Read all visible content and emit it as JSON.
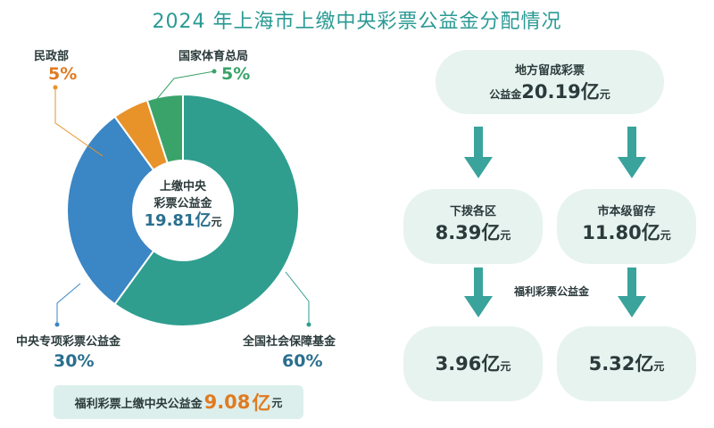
{
  "title": "2024 年上海市上缴中央彩票公益金分配情况",
  "chart_data": {
    "type": "pie",
    "title": "2024 年上海市上缴中央彩票公益金分配情况",
    "center_caption_line1": "上缴中央",
    "center_caption_line2": "彩票公益金",
    "center_amount": "19.81",
    "center_amount_unit_big": "亿",
    "center_amount_unit_small": "元",
    "slices": [
      {
        "name": "全国社会保障基金",
        "value": 60,
        "label": "60%",
        "color": "#2f9e8f"
      },
      {
        "name": "中央专项彩票公益金",
        "value": 30,
        "label": "30%",
        "color": "#3b86c4"
      },
      {
        "name": "民政部",
        "value": 5,
        "label": "5%",
        "color": "#e8922a"
      },
      {
        "name": "国家体育总局",
        "value": 5,
        "label": "5%",
        "color": "#3aa36a"
      }
    ]
  },
  "bottom_banner": {
    "text": "福利彩票上缴中央公益金",
    "amount": "9.08",
    "unit_big": "亿",
    "unit_small": "元"
  },
  "flow": {
    "top": {
      "caption": "地方留成彩票",
      "prefix": "公益金",
      "amount": "20.19",
      "unit_big": "亿",
      "unit_small": "元"
    },
    "left": {
      "caption": "下拨各区",
      "amount": "8.39",
      "unit_big": "亿",
      "unit_small": "元"
    },
    "right": {
      "caption": "市本级留存",
      "amount": "11.80",
      "unit_big": "亿",
      "unit_small": "元"
    },
    "middle_label": "福利彩票公益金",
    "bottom_left": {
      "amount": "3.96",
      "unit_big": "亿",
      "unit_small": "元"
    },
    "bottom_right": {
      "amount": "5.32",
      "unit_big": "亿",
      "unit_small": "元"
    }
  },
  "colors": {
    "accent": "#2a9a94",
    "pct_orange": "#e07b22",
    "pct_blue": "#2a6f8f",
    "pct_green": "#3aa36a",
    "arrow": "#3aa39b"
  }
}
